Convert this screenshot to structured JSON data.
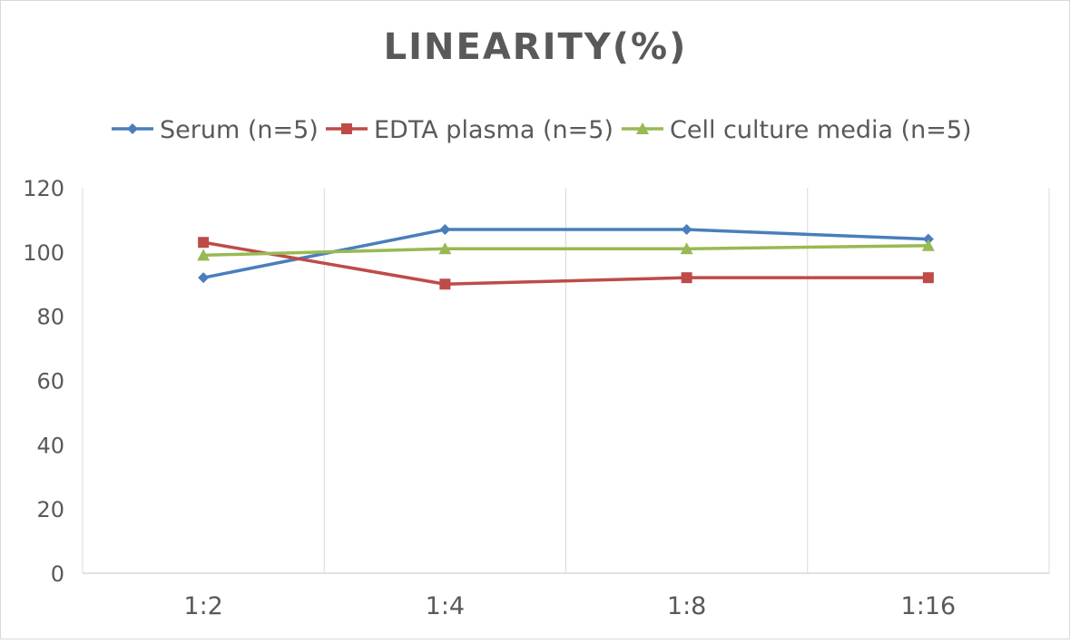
{
  "chart_data": {
    "type": "line",
    "title": "LINEARITY(%)",
    "xlabel": "",
    "ylabel": "",
    "categories": [
      "1:2",
      "1:4",
      "1:8",
      "1:16"
    ],
    "ylim": [
      0,
      120
    ],
    "yticks": [
      0,
      20,
      40,
      60,
      80,
      100,
      120
    ],
    "grid": "vertical",
    "legend_position": "top",
    "series": [
      {
        "name": "Serum (n=5)",
        "values": [
          92,
          107,
          107,
          104
        ],
        "color": "#4a7ebb",
        "marker": "diamond"
      },
      {
        "name": "EDTA plasma (n=5)",
        "values": [
          103,
          90,
          92,
          92
        ],
        "color": "#be4b48",
        "marker": "square"
      },
      {
        "name": "Cell culture media (n=5)",
        "values": [
          99,
          101,
          101,
          102
        ],
        "color": "#98b954",
        "marker": "triangle"
      }
    ]
  }
}
